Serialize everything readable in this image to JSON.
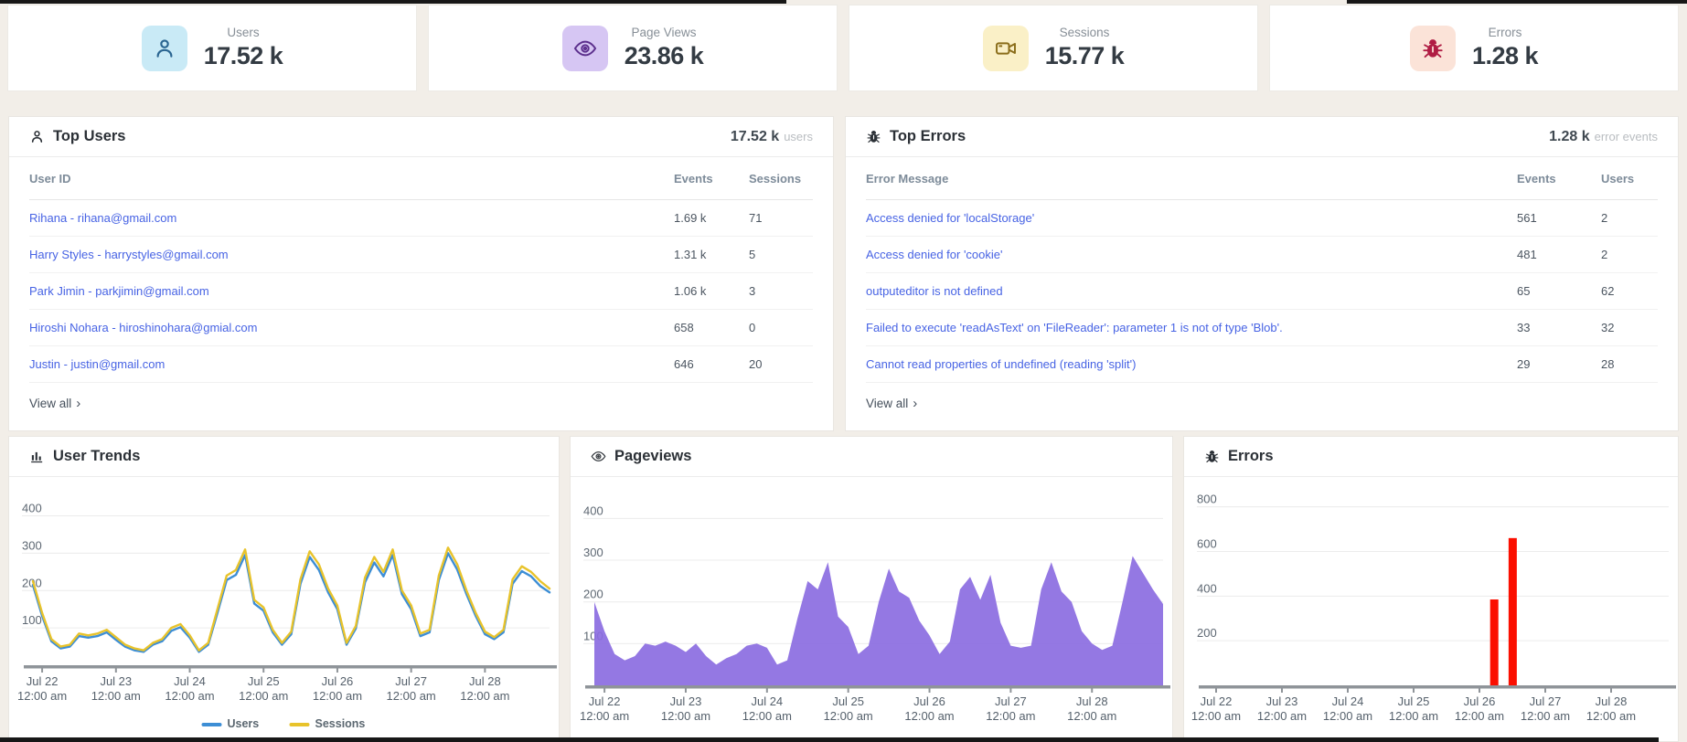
{
  "page": {
    "background": "#f2eee8",
    "chevron": "›"
  },
  "stat_cards": [
    {
      "label": "Users",
      "value": "17.52 k",
      "icon": "user-icon",
      "icon_bg": "#c9eaf6",
      "icon_color": "#2a6591"
    },
    {
      "label": "Page Views",
      "value": "23.86 k",
      "icon": "eye-icon",
      "icon_bg": "#d6c6f3",
      "icon_color": "#5c2f8d"
    },
    {
      "label": "Sessions",
      "value": "15.77 k",
      "icon": "video-icon",
      "icon_bg": "#faf0c7",
      "icon_color": "#8a6d1a"
    },
    {
      "label": "Errors",
      "value": "1.28 k",
      "icon": "bug-icon",
      "icon_bg": "#fbe3d8",
      "icon_color": "#b01d44"
    }
  ],
  "top_users": {
    "title": "Top Users",
    "total": "17.52 k",
    "total_unit": "users",
    "columns": [
      "User ID",
      "Events",
      "Sessions"
    ],
    "rows": [
      {
        "id": "Rihana - rihana@gmail.com",
        "events": "1.69 k",
        "sessions": "71"
      },
      {
        "id": "Harry Styles - harrystyles@gmail.com",
        "events": "1.31 k",
        "sessions": "5"
      },
      {
        "id": "Park Jimin - parkjimin@gmail.com",
        "events": "1.06 k",
        "sessions": "3"
      },
      {
        "id": "Hiroshi Nohara - hiroshinohara@gmial.com",
        "events": "658",
        "sessions": "0"
      },
      {
        "id": "Justin - justin@gmail.com",
        "events": "646",
        "sessions": "20"
      }
    ],
    "view_all": "View all"
  },
  "top_errors": {
    "title": "Top Errors",
    "total": "1.28 k",
    "total_unit": "error events",
    "columns": [
      "Error Message",
      "Events",
      "Users"
    ],
    "rows": [
      {
        "message": "Access denied for 'localStorage'",
        "events": "561",
        "users": "2"
      },
      {
        "message": "Access denied for 'cookie'",
        "events": "481",
        "users": "2"
      },
      {
        "message": "outputeditor is not defined",
        "events": "65",
        "users": "62"
      },
      {
        "message": "Failed to execute 'readAsText' on 'FileReader': parameter 1 is not of type 'Blob'.",
        "events": "33",
        "users": "32"
      },
      {
        "message": "Cannot read properties of undefined (reading 'split')",
        "events": "29",
        "users": "28"
      }
    ],
    "view_all": "View all"
  },
  "chart_data": [
    {
      "type": "line",
      "title": "User Trends",
      "panel_icon": "bar-chart-icon",
      "legend": true,
      "legend_position": "bottom-center",
      "grid": true,
      "ylim": [
        0,
        460
      ],
      "yticks": [
        100,
        200,
        300,
        400
      ],
      "step_days": 0.125,
      "tick_offset_days": 0.125,
      "x_tick_labels": [
        [
          "Jul 22",
          "12:00 am"
        ],
        [
          "Jul 23",
          "12:00 am"
        ],
        [
          "Jul 24",
          "12:00 am"
        ],
        [
          "Jul 25",
          "12:00 am"
        ],
        [
          "Jul 26",
          "12:00 am"
        ],
        [
          "Jul 27",
          "12:00 am"
        ],
        [
          "Jul 28",
          "12:00 am"
        ]
      ],
      "series": [
        {
          "name": "Users",
          "color": "#3d8ed5",
          "values": [
            215,
            132,
            64,
            45,
            50,
            78,
            74,
            78,
            88,
            68,
            50,
            40,
            36,
            55,
            64,
            92,
            102,
            74,
            36,
            55,
            140,
            228,
            242,
            295,
            165,
            146,
            88,
            55,
            83,
            218,
            290,
            255,
            195,
            150,
            55,
            98,
            222,
            275,
            238,
            295,
            190,
            150,
            78,
            88,
            228,
            300,
            256,
            190,
            132,
            83,
            70,
            88,
            218,
            252,
            238,
            212,
            195
          ]
        },
        {
          "name": "Sessions",
          "color": "#e8c32b",
          "values": [
            225,
            140,
            70,
            50,
            55,
            85,
            80,
            85,
            95,
            75,
            55,
            45,
            40,
            60,
            70,
            100,
            110,
            80,
            40,
            60,
            150,
            240,
            255,
            310,
            175,
            155,
            95,
            60,
            90,
            230,
            305,
            270,
            205,
            160,
            60,
            105,
            235,
            290,
            250,
            310,
            200,
            160,
            85,
            95,
            240,
            315,
            270,
            200,
            140,
            90,
            75,
            95,
            230,
            265,
            250,
            225,
            205
          ]
        }
      ]
    },
    {
      "type": "area",
      "title": "Pageviews",
      "panel_icon": "eye-icon",
      "legend": false,
      "grid": true,
      "color": "#8b6ce1",
      "ylim": [
        0,
        460
      ],
      "yticks": [
        100,
        200,
        300,
        400
      ],
      "step_days": 0.125,
      "tick_offset_days": 0.125,
      "x_tick_labels": [
        [
          "Jul 22",
          "12:00 am"
        ],
        [
          "Jul 23",
          "12:00 am"
        ],
        [
          "Jul 24",
          "12:00 am"
        ],
        [
          "Jul 25",
          "12:00 am"
        ],
        [
          "Jul 26",
          "12:00 am"
        ],
        [
          "Jul 27",
          "12:00 am"
        ],
        [
          "Jul 28",
          "12:00 am"
        ]
      ],
      "values": [
        200,
        130,
        75,
        60,
        70,
        100,
        95,
        105,
        95,
        80,
        100,
        70,
        50,
        65,
        75,
        95,
        100,
        90,
        50,
        60,
        160,
        250,
        230,
        295,
        165,
        140,
        75,
        95,
        200,
        280,
        225,
        210,
        155,
        120,
        75,
        105,
        230,
        260,
        205,
        265,
        150,
        95,
        90,
        95,
        230,
        295,
        225,
        200,
        130,
        100,
        85,
        95,
        200,
        310,
        270,
        230,
        195
      ]
    },
    {
      "type": "bar",
      "title": "Errors",
      "panel_icon": "bug-icon",
      "legend": false,
      "grid": true,
      "color": "#fb0f00",
      "ylim": [
        0,
        860
      ],
      "yticks": [
        200,
        400,
        600,
        800
      ],
      "tick_offset_days": 0.125,
      "x_tick_labels": [
        [
          "Jul 22",
          "12:00 am"
        ],
        [
          "Jul 23",
          "12:00 am"
        ],
        [
          "Jul 24",
          "12:00 am"
        ],
        [
          "Jul 25",
          "12:00 am"
        ],
        [
          "Jul 26",
          "12:00 am"
        ],
        [
          "Jul 27",
          "12:00 am"
        ],
        [
          "Jul 28",
          "12:00 am"
        ]
      ],
      "bars": [
        {
          "t_days": 4.35,
          "value": 385
        },
        {
          "t_days": 4.63,
          "value": 660
        }
      ]
    }
  ]
}
